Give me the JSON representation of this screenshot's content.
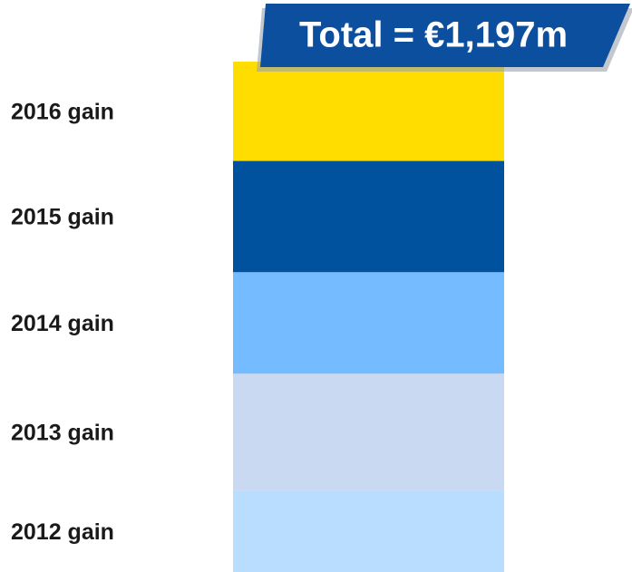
{
  "chart_data": {
    "type": "stacked_bar",
    "title": "Total = €1,197m",
    "series": [
      {
        "name": "2012 gain",
        "color": "#b9ddff",
        "values": [
          190
        ]
      },
      {
        "name": "2013 gain",
        "color": "#c8d9f1",
        "values": [
          275
        ]
      },
      {
        "name": "2014 gain",
        "color": "#74bbff",
        "values": [
          238
        ]
      },
      {
        "name": "2015 gain",
        "color": "#00519e",
        "values": [
          261
        ]
      },
      {
        "name": "2016 gain",
        "color": "#ffdd00",
        "values": [
          233
        ]
      }
    ]
  }
}
